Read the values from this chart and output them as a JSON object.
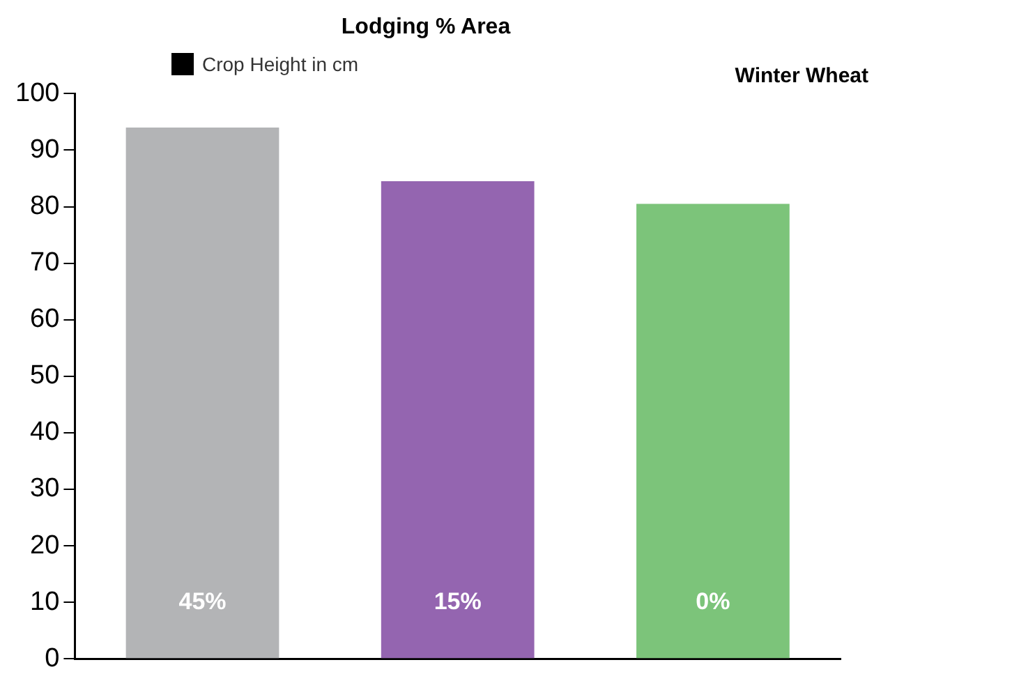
{
  "chart_data": {
    "type": "bar",
    "title": "Lodging % Area",
    "annotations": [
      "Winter Wheat",
      "45%",
      "15%",
      "0%"
    ],
    "categories": [
      null,
      null,
      null
    ],
    "series": [
      {
        "name": "Crop Height in cm",
        "color": "#000000",
        "colors": [
          "#b3b4b6",
          "#9465b0",
          "#7cc47a"
        ],
        "values": [
          94,
          84.5,
          80.5
        ]
      }
    ],
    "ylim": [
      0,
      100
    ],
    "yticks": [
      0,
      10,
      20,
      30,
      40,
      50,
      60,
      70,
      80,
      90,
      100
    ],
    "grid": false,
    "legend": "top left",
    "tick_labels": "y"
  }
}
